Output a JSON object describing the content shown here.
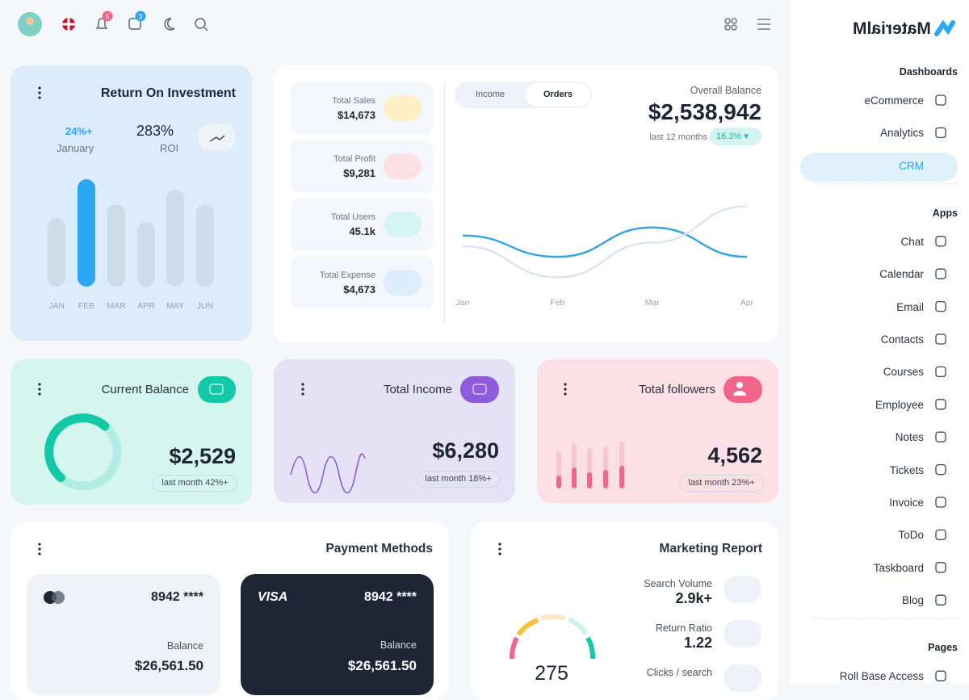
{
  "topbar": {
    "notification_count": "5",
    "message_count": "3"
  },
  "sidebar": {
    "brand": "MaterialM",
    "sections": [
      {
        "title": "Dashboards",
        "items": [
          "eCommerce",
          "Analytics",
          "CRM"
        ]
      },
      {
        "title": "Apps",
        "items": [
          "Chat",
          "Calendar",
          "Email",
          "Contacts",
          "Courses",
          "Employee",
          "Notes",
          "Tickets",
          "Invoice",
          "ToDo",
          "Taskboard",
          "Blog"
        ]
      },
      {
        "title": "Pages",
        "items": [
          "Roll Base Access"
        ]
      }
    ],
    "active": "CRM"
  },
  "roi": {
    "title": "Return On Investment",
    "change": "24%+",
    "month": "January",
    "value": "283%",
    "value_label": "ROI",
    "chart": {
      "type": "bar",
      "categories": [
        "JAN",
        "FEB",
        "MAR",
        "APR",
        "MAY",
        "JUN"
      ],
      "values": [
        85,
        133,
        102,
        80,
        120,
        102
      ],
      "ylim": [
        0,
        140
      ],
      "color": "#cfdde8",
      "highlight_color": "#2aa7f5",
      "highlight_index": 1
    }
  },
  "overview": {
    "stats": [
      {
        "label": "Total Sales",
        "value": "$14,673"
      },
      {
        "label": "Total Profit",
        "value": "$9,281"
      },
      {
        "label": "Total Users",
        "value": "45.1k"
      },
      {
        "label": "Total Expense",
        "value": "$4,673"
      }
    ],
    "tabs": [
      "Income",
      "Orders"
    ],
    "active_tab": "Orders",
    "balance_label": "Overall Balance",
    "balance": "$2,538,942",
    "period": "last 12 months",
    "change": "16.3%",
    "chart": {
      "type": "line",
      "categories": [
        "Jan",
        "Feb",
        "Mar",
        "Apr"
      ],
      "ylim": [
        0,
        100
      ],
      "series": [
        {
          "color": "#3aa6e0",
          "values": [
            53,
            29,
            62,
            29
          ]
        },
        {
          "color": "#dbe4ee",
          "values": [
            41,
            6,
            45,
            86
          ]
        }
      ]
    }
  },
  "current_balance": {
    "title": "Current Balance",
    "value": "$2,529",
    "note": "last month 42%+"
  },
  "total_income": {
    "title": "Total Income",
    "value": "$6,280",
    "note": "last month 18%+"
  },
  "followers": {
    "title": "Total followers",
    "value": "4,562",
    "note": "last month 23%+"
  },
  "payment": {
    "title": "Payment Methods",
    "cards": [
      {
        "number": "8942 ****",
        "balance_label": "Balance",
        "balance": "$26,561.50"
      },
      {
        "brand": "VISA",
        "number": "8942 ****",
        "balance_label": "Balance",
        "balance": "$26,561.50"
      }
    ]
  },
  "marketing": {
    "title": "Marketing Report",
    "items": [
      {
        "label": "Search Volume",
        "value": "2.9k+"
      },
      {
        "label": "Return Ratio",
        "value": "1.22"
      },
      {
        "label": "Clicks / search"
      }
    ],
    "gauge_value": "275"
  }
}
